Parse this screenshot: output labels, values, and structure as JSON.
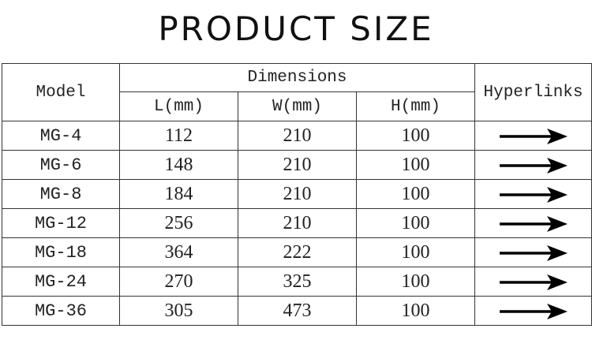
{
  "title": "PRODUCT SIZE",
  "table": {
    "headers": {
      "model": "Model",
      "dimensions": "Dimensions",
      "hyperlinks": "Hyperlinks",
      "sub": [
        "L(mm)",
        "W(mm)",
        "H(mm)"
      ]
    },
    "rows": [
      {
        "model": "MG-4",
        "l": "112",
        "w": "210",
        "h": "100",
        "link": "arrow-right-icon"
      },
      {
        "model": "MG-6",
        "l": "148",
        "w": "210",
        "h": "100",
        "link": "arrow-right-icon"
      },
      {
        "model": "MG-8",
        "l": "184",
        "w": "210",
        "h": "100",
        "link": "arrow-right-icon"
      },
      {
        "model": "MG-12",
        "l": "256",
        "w": "210",
        "h": "100",
        "link": "arrow-right-icon"
      },
      {
        "model": "MG-18",
        "l": "364",
        "w": "222",
        "h": "100",
        "link": "arrow-right-icon"
      },
      {
        "model": "MG-24",
        "l": "270",
        "w": "325",
        "h": "100",
        "link": "arrow-right-icon"
      },
      {
        "model": "MG-36",
        "l": "305",
        "w": "473",
        "h": "100",
        "link": "arrow-right-icon"
      }
    ]
  }
}
